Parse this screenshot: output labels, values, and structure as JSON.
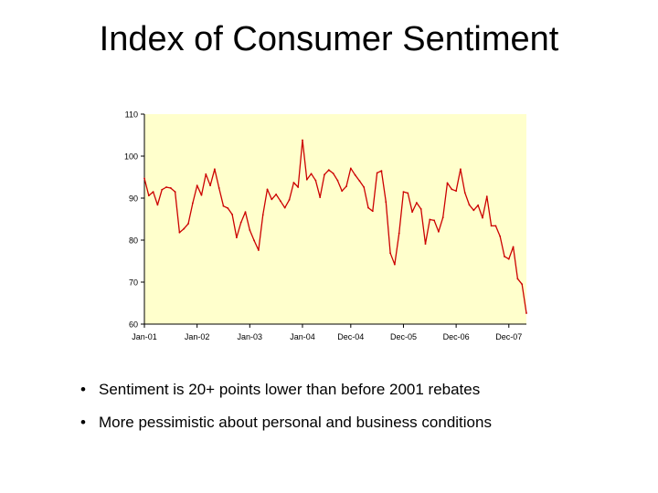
{
  "slide": {
    "title": "Index of Consumer Sentiment",
    "bullets": [
      "Sentiment is 20+ points lower than before 2001 rebates",
      "More pessimistic about personal and business conditions"
    ]
  },
  "chart_data": {
    "type": "line",
    "title": "",
    "xlabel": "",
    "ylabel": "",
    "ylim": [
      60,
      110
    ],
    "yticks": [
      60,
      70,
      80,
      90,
      100,
      110
    ],
    "grid": false,
    "plot_background": "#FFFFCC",
    "line_color": "#CC0000",
    "x_tick_labels": [
      {
        "label": "Jan-01",
        "index": 0
      },
      {
        "label": "Jan-02",
        "index": 12
      },
      {
        "label": "Jan-03",
        "index": 24
      },
      {
        "label": "Jan-04",
        "index": 36
      },
      {
        "label": "Dec-04",
        "index": 47
      },
      {
        "label": "Dec-05",
        "index": 59
      },
      {
        "label": "Dec-06",
        "index": 71
      },
      {
        "label": "Dec-07",
        "index": 83
      }
    ],
    "series": [
      {
        "values": [
          94.7,
          90.6,
          91.5,
          88.4,
          92.0,
          92.6,
          92.4,
          91.5,
          81.8,
          82.7,
          83.9,
          88.8,
          93.0,
          90.7,
          95.7,
          93.0,
          96.9,
          92.4,
          88.1,
          87.6,
          86.1,
          80.6,
          84.2,
          86.7,
          82.4,
          79.9,
          77.6,
          86.0,
          92.1,
          89.7,
          90.9,
          89.3,
          87.7,
          89.6,
          93.7,
          92.6,
          103.8,
          94.4,
          95.8,
          94.2,
          90.2,
          95.6,
          96.7,
          95.9,
          94.2,
          91.7,
          92.8,
          97.1,
          95.5,
          94.1,
          92.6,
          87.7,
          86.9,
          96.0,
          96.5,
          89.1,
          76.9,
          74.2,
          81.6,
          91.5,
          91.2,
          86.7,
          88.9,
          87.4,
          79.1,
          84.9,
          84.7,
          82.0,
          85.4,
          93.6,
          92.1,
          91.7,
          96.9,
          91.3,
          88.4,
          87.1,
          88.3,
          85.3,
          90.4,
          83.4,
          83.4,
          80.9,
          76.1,
          75.5,
          78.4,
          70.8,
          69.5,
          62.6
        ]
      }
    ]
  }
}
